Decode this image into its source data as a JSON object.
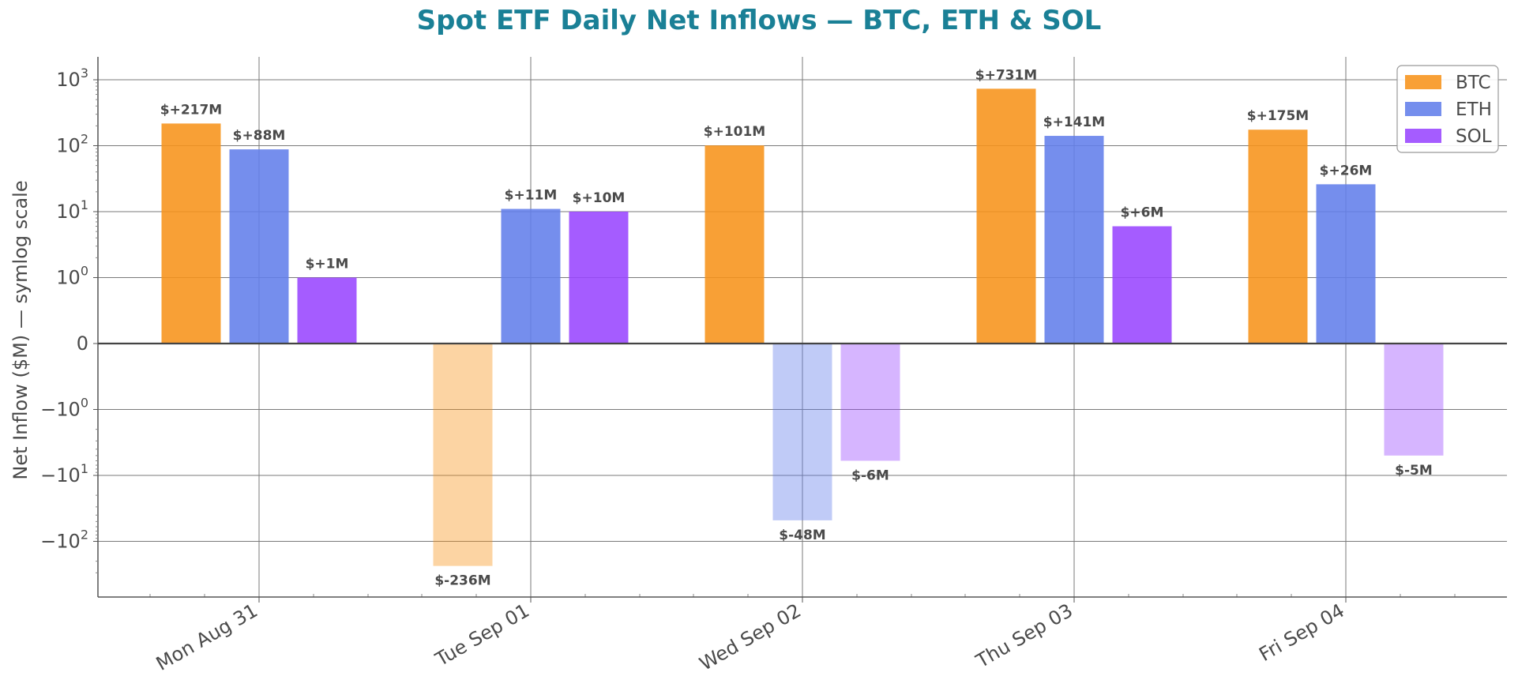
{
  "chart_data": {
    "type": "bar",
    "title": "Spot ETF Daily Net Inflows — BTC, ETH & SOL",
    "xlabel": "",
    "ylabel": "Net Inflow ($M) — symlog scale",
    "y_scale": "symlog",
    "grid": true,
    "legend_position": "top-right",
    "categories": [
      "Mon Aug 31",
      "Tue Sep 01",
      "Wed Sep 02",
      "Thu Sep 03",
      "Fri Sep 04"
    ],
    "y_ticks": [
      {
        "value": 1000,
        "base": "10",
        "exp": "3"
      },
      {
        "value": 100,
        "base": "10",
        "exp": "2"
      },
      {
        "value": 10,
        "base": "10",
        "exp": "1"
      },
      {
        "value": 1,
        "base": "10",
        "exp": "0"
      },
      {
        "value": 0,
        "base": "0",
        "exp": ""
      },
      {
        "value": -1,
        "base": "−10",
        "exp": "0"
      },
      {
        "value": -10,
        "base": "−10",
        "exp": "1"
      },
      {
        "value": -100,
        "base": "−10",
        "exp": "2"
      }
    ],
    "ylim": [
      -300,
      1100
    ],
    "series": [
      {
        "name": "BTC",
        "color": "#f7931a",
        "values": [
          217,
          -236,
          101,
          731,
          175
        ],
        "labels": [
          "$+217M",
          "$-236M",
          "$+101M",
          "$+731M",
          "$+175M"
        ]
      },
      {
        "name": "ETH",
        "color": "#627eea",
        "values": [
          88,
          11,
          -48,
          141,
          26
        ],
        "labels": [
          "$+88M",
          "$+11M",
          "$-48M",
          "$+141M",
          "$+26M"
        ]
      },
      {
        "name": "SOL",
        "color": "#9945ff",
        "values": [
          1,
          10,
          -6,
          6,
          -5
        ],
        "labels": [
          "$+1M",
          "$+10M",
          "$-6M",
          "$+6M",
          "$-5M"
        ]
      }
    ]
  }
}
